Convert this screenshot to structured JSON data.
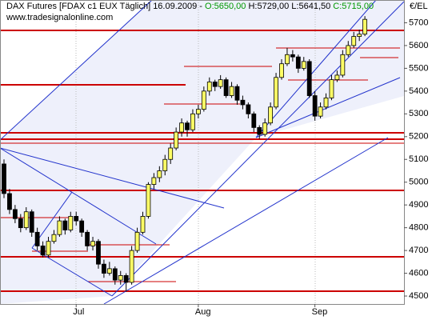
{
  "chart_data": {
    "type": "candlestick",
    "title": "DAX Futures [FDAX c1 EUX  Täglich] 16.09.2009 - ",
    "ohlc_text": {
      "open": "O:5650,00",
      "high": "H:5729,00",
      "low": "L:5641,50",
      "close": "C:5715,00"
    },
    "source": "www.tradesignalonline.com",
    "unit": "€/EL",
    "categories": [
      null,
      null,
      null,
      null,
      null,
      null,
      null,
      null,
      null,
      null,
      null,
      null,
      null,
      "Jul",
      null,
      null,
      null,
      null,
      null,
      null,
      null,
      null,
      null,
      null,
      null,
      null,
      null,
      null,
      null,
      null,
      null,
      null,
      null,
      null,
      null,
      "Aug",
      null,
      null,
      null,
      null,
      null,
      null,
      null,
      null,
      null,
      null,
      null,
      null,
      null,
      null,
      null,
      null,
      null,
      null,
      null,
      null,
      "Sep",
      null,
      null,
      null,
      null,
      null,
      null,
      null,
      null,
      null
    ],
    "open": [
      5080,
      4950,
      4880,
      4840,
      4800,
      4870,
      4780,
      4720,
      4680,
      4740,
      4770,
      4830,
      4790,
      4850,
      4830,
      4780,
      4720,
      4740,
      4640,
      4600,
      4620,
      4570,
      4590,
      4560,
      4700,
      4780,
      4850,
      4990,
      5020,
      5050,
      5100,
      5150,
      5220,
      5260,
      5230,
      5300,
      5320,
      5400,
      5440,
      5420,
      5450,
      5380,
      5420,
      5360,
      5340,
      5300,
      5240,
      5210,
      5260,
      5330,
      5460,
      5520,
      5560,
      5550,
      5500,
      5530,
      5380,
      5290,
      5330,
      5370,
      5450,
      5470,
      5560,
      5600,
      5640,
      5650
    ],
    "high": [
      5100,
      4970,
      4900,
      4860,
      4890,
      4880,
      4800,
      4740,
      4760,
      4790,
      4850,
      4840,
      4870,
      4870,
      4840,
      4790,
      4760,
      4750,
      4660,
      4650,
      4630,
      4610,
      4600,
      4720,
      4800,
      4870,
      5000,
      5040,
      5070,
      5120,
      5170,
      5240,
      5280,
      5270,
      5320,
      5340,
      5420,
      5460,
      5450,
      5470,
      5460,
      5440,
      5430,
      5380,
      5350,
      5310,
      5250,
      5280,
      5350,
      5480,
      5540,
      5590,
      5580,
      5560,
      5550,
      5540,
      5400,
      5350,
      5390,
      5470,
      5490,
      5580,
      5620,
      5660,
      5670,
      5729
    ],
    "low": [
      4930,
      4860,
      4820,
      4780,
      4790,
      4760,
      4700,
      4670,
      4670,
      4730,
      4760,
      4770,
      4780,
      4810,
      4760,
      4700,
      4700,
      4620,
      4580,
      4590,
      4550,
      4550,
      4520,
      4550,
      4690,
      4770,
      4840,
      4970,
      5000,
      5030,
      5080,
      5140,
      5200,
      5200,
      5220,
      5280,
      5310,
      5380,
      5400,
      5410,
      5370,
      5370,
      5340,
      5320,
      5280,
      5220,
      5190,
      5200,
      5250,
      5320,
      5450,
      5510,
      5530,
      5480,
      5490,
      5370,
      5270,
      5280,
      5320,
      5360,
      5440,
      5460,
      5550,
      5590,
      5620,
      5641.5
    ],
    "close": [
      4950,
      4880,
      4840,
      4800,
      4870,
      4780,
      4720,
      4680,
      4740,
      4770,
      4830,
      4790,
      4850,
      4830,
      4780,
      4720,
      4740,
      4640,
      4600,
      4620,
      4570,
      4590,
      4560,
      4700,
      4780,
      4850,
      4990,
      5020,
      5050,
      5100,
      5150,
      5220,
      5260,
      5230,
      5300,
      5320,
      5400,
      5440,
      5420,
      5450,
      5380,
      5420,
      5360,
      5340,
      5300,
      5240,
      5210,
      5260,
      5330,
      5460,
      5520,
      5560,
      5550,
      5500,
      5530,
      5380,
      5290,
      5330,
      5370,
      5450,
      5470,
      5560,
      5600,
      5640,
      5650,
      5715
    ],
    "up_color": "#ffff66",
    "down_color": "#000000",
    "ylim": [
      4465,
      5800
    ],
    "yticks": [
      4500,
      4600,
      4700,
      4800,
      4900,
      5000,
      5100,
      5200,
      5300,
      5400,
      5500,
      5600,
      5700
    ]
  }
}
